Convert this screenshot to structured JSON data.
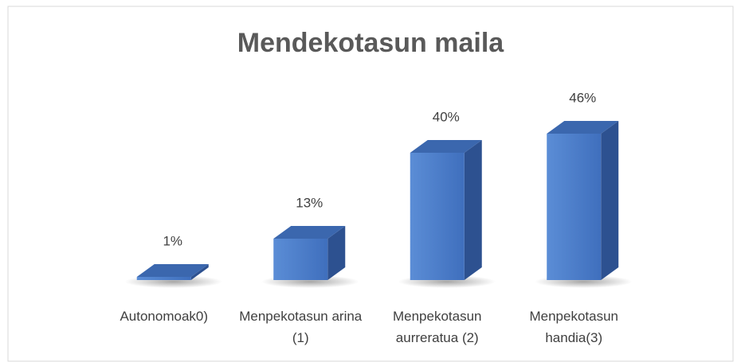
{
  "chart_data": {
    "type": "bar3d",
    "title": "Mendekotasun maila",
    "categories": [
      "Autonomoak0)",
      "Menpekotasun arina (1)",
      "Menpekotasun aurreratua (2)",
      "Menpekotasun handia(3)"
    ],
    "values": [
      1,
      13,
      40,
      46
    ],
    "value_labels": [
      "1%",
      "13%",
      "40%",
      "46%"
    ],
    "color": "#4a7cc8"
  }
}
